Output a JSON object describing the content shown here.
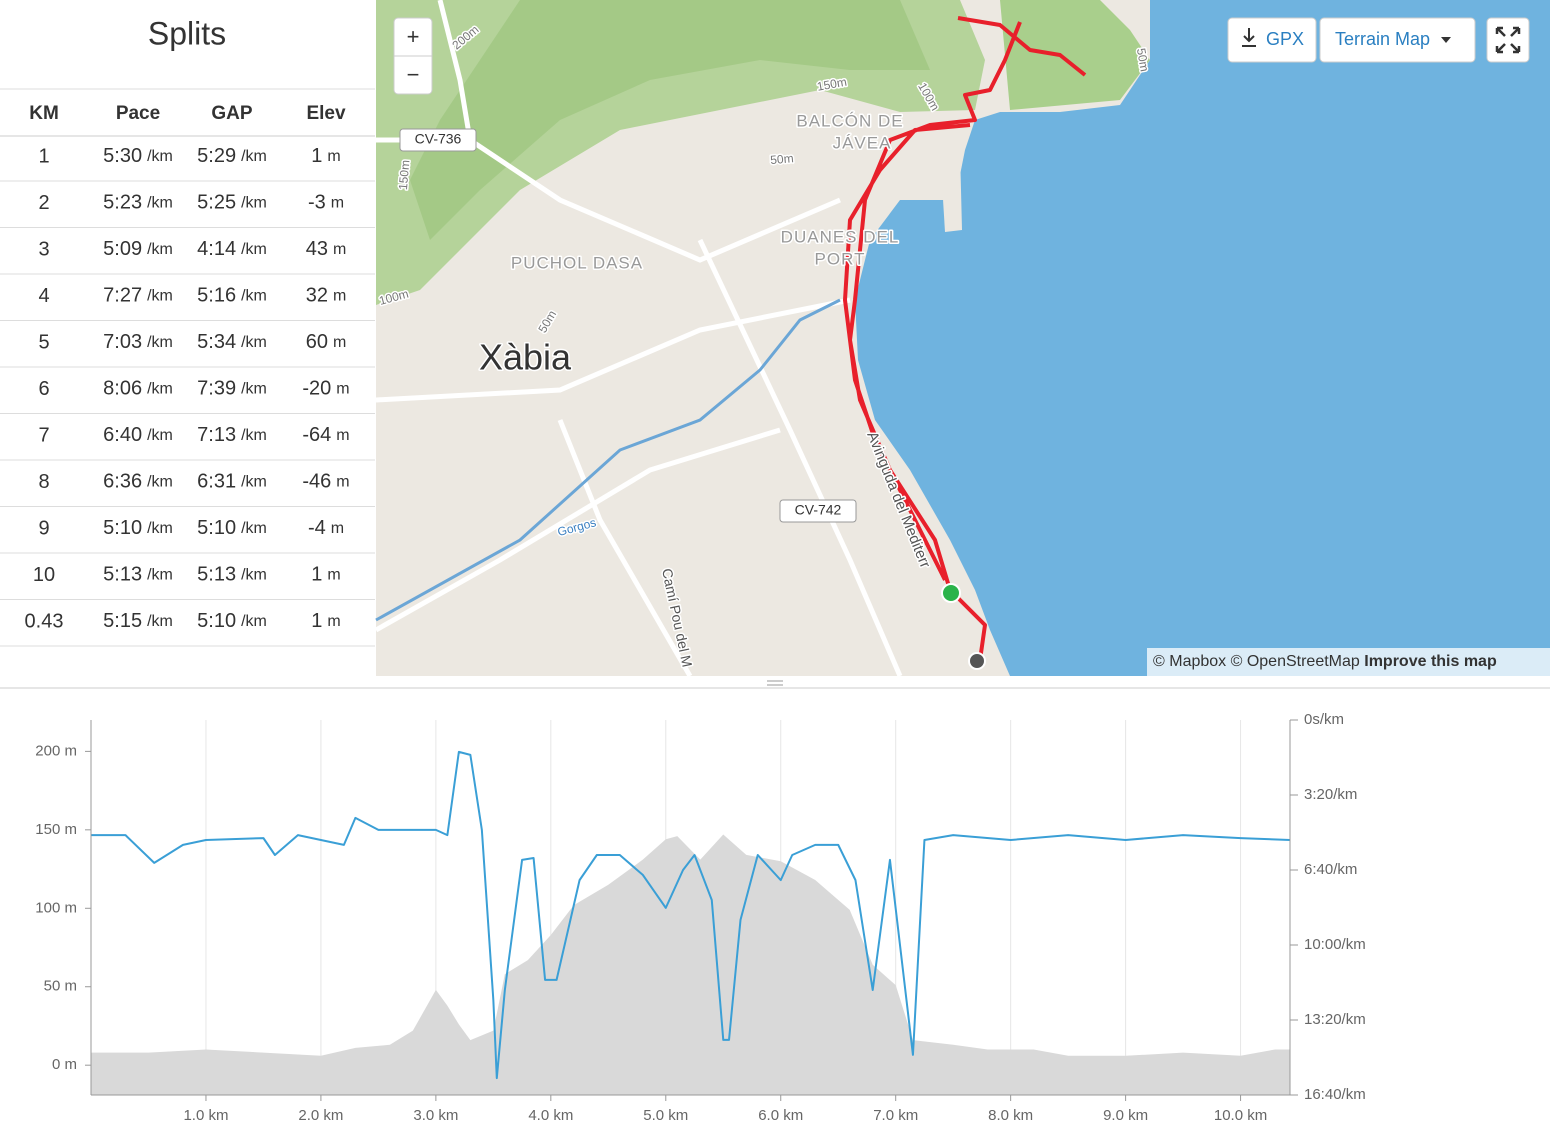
{
  "splits": {
    "title": "Splits",
    "headers": [
      "KM",
      "Pace",
      "GAP",
      "Elev"
    ],
    "pace_unit": "/km",
    "elev_unit": "m",
    "rows": [
      {
        "km": 1,
        "pace": "5:30",
        "gap": "5:29",
        "elev": 1
      },
      {
        "km": 2,
        "pace": "5:23",
        "gap": "5:25",
        "elev": -3
      },
      {
        "km": 3,
        "pace": "5:09",
        "gap": "4:14",
        "elev": 43
      },
      {
        "km": 4,
        "pace": "7:27",
        "gap": "5:16",
        "elev": 32
      },
      {
        "km": 5,
        "pace": "7:03",
        "gap": "5:34",
        "elev": 60
      },
      {
        "km": 6,
        "pace": "8:06",
        "gap": "7:39",
        "elev": -20
      },
      {
        "km": 7,
        "pace": "6:40",
        "gap": "7:13",
        "elev": -64
      },
      {
        "km": 8,
        "pace": "6:36",
        "gap": "6:31",
        "elev": -46
      },
      {
        "km": 9,
        "pace": "5:10",
        "gap": "5:10",
        "elev": -4
      },
      {
        "km": 10,
        "pace": "5:13",
        "gap": "5:13",
        "elev": 1
      },
      {
        "km": 0.43,
        "pace": "5:15",
        "gap": "5:10",
        "elev": 1
      }
    ]
  },
  "map": {
    "zoom_in": "+",
    "zoom_out": "−",
    "gpx": "GPX",
    "layer": "Terrain Map",
    "attribution": "© Mapbox © OpenStreetMap",
    "improve": "Improve this map",
    "labels": [
      "200m",
      "150m",
      "100m",
      "50m",
      "50m",
      "150m",
      "100m",
      "50m",
      "BALCÓN DE",
      "JÁVEA",
      "DUANES DEL",
      "PORT",
      "PUCHOL DASA",
      "Xàbia",
      "Avinguda del Mediterr",
      "Gorgos",
      "Camí Pou del M"
    ],
    "shields": [
      "CV-736",
      "CV-742"
    ]
  },
  "chart_data": {
    "type": "line",
    "xlim": [
      0,
      10.43
    ],
    "xticks": [
      {
        "value": 1,
        "label": "1.0 km"
      },
      {
        "value": 2,
        "label": "2.0 km"
      },
      {
        "value": 3,
        "label": "3.0 km"
      },
      {
        "value": 4,
        "label": "4.0 km"
      },
      {
        "value": 5,
        "label": "5.0 km"
      },
      {
        "value": 6,
        "label": "6.0 km"
      },
      {
        "value": 7,
        "label": "7.0 km"
      },
      {
        "value": 8,
        "label": "8.0 km"
      },
      {
        "value": 9,
        "label": "9.0 km"
      },
      {
        "value": 10,
        "label": "10.0 km"
      }
    ],
    "ylim": [
      -19,
      220
    ],
    "yticks": [
      {
        "value": 0,
        "label": "0 m"
      },
      {
        "value": 50,
        "label": "50 m"
      },
      {
        "value": 100,
        "label": "100 m"
      },
      {
        "value": 150,
        "label": "150 m"
      },
      {
        "value": 200,
        "label": "200 m"
      }
    ],
    "y2lim": [
      1000,
      0
    ],
    "y2ticks": [
      {
        "value": 0,
        "label": "0s/km"
      },
      {
        "value": 200,
        "label": "3:20/km"
      },
      {
        "value": 400,
        "label": "6:40/km"
      },
      {
        "value": 600,
        "label": "10:00/km"
      },
      {
        "value": 800,
        "label": "13:20/km"
      },
      {
        "value": 1000,
        "label": "16:40/km"
      }
    ],
    "xgrid": true,
    "series": [
      {
        "kind": "area",
        "color": "#d9d9d9",
        "x": [
          0,
          0.5,
          1.0,
          1.5,
          2.0,
          2.3,
          2.6,
          2.8,
          3.0,
          3.1,
          3.2,
          3.3,
          3.5,
          3.6,
          3.8,
          4.0,
          4.2,
          4.5,
          4.8,
          5.0,
          5.1,
          5.3,
          5.5,
          5.7,
          6.0,
          6.3,
          6.6,
          6.8,
          7.0,
          7.15,
          7.5,
          7.8,
          8.2,
          8.5,
          9.0,
          9.5,
          10.0,
          10.3,
          10.43
        ],
        "values": [
          8,
          8,
          10,
          8,
          6,
          11,
          13,
          22,
          48,
          38,
          26,
          16,
          22,
          58,
          67,
          83,
          102,
          115,
          131,
          144,
          146,
          131,
          147,
          134,
          130,
          118,
          99,
          64,
          51,
          16,
          13,
          10,
          10,
          6,
          6,
          8,
          6,
          10,
          10
        ]
      },
      {
        "kind": "line",
        "color": "#3a9fd6",
        "axis": "y2",
        "x": [
          0,
          0.3,
          0.55,
          0.8,
          1.0,
          1.5,
          1.6,
          1.8,
          2.0,
          2.2,
          2.3,
          2.5,
          3.0,
          3.1,
          3.2,
          3.3,
          3.4,
          3.5,
          3.53,
          3.6,
          3.75,
          3.85,
          3.95,
          4.05,
          4.25,
          4.4,
          4.6,
          4.8,
          5.0,
          5.15,
          5.25,
          5.4,
          5.5,
          5.55,
          5.65,
          5.8,
          6.0,
          6.1,
          6.3,
          6.5,
          6.65,
          6.8,
          6.95,
          7.15,
          7.25,
          7.5,
          8.0,
          8.5,
          9.0,
          9.5,
          10.0,
          10.43
        ],
        "values": [
          307,
          307,
          381,
          333,
          320,
          315,
          360,
          307,
          320,
          333,
          261,
          293,
          293,
          307,
          85,
          93,
          293,
          747,
          955,
          720,
          373,
          368,
          693,
          693,
          427,
          360,
          360,
          413,
          501,
          400,
          360,
          480,
          853,
          853,
          533,
          360,
          427,
          360,
          333,
          333,
          427,
          720,
          373,
          893,
          320,
          307,
          320,
          307,
          320,
          307,
          315,
          320
        ]
      }
    ]
  }
}
